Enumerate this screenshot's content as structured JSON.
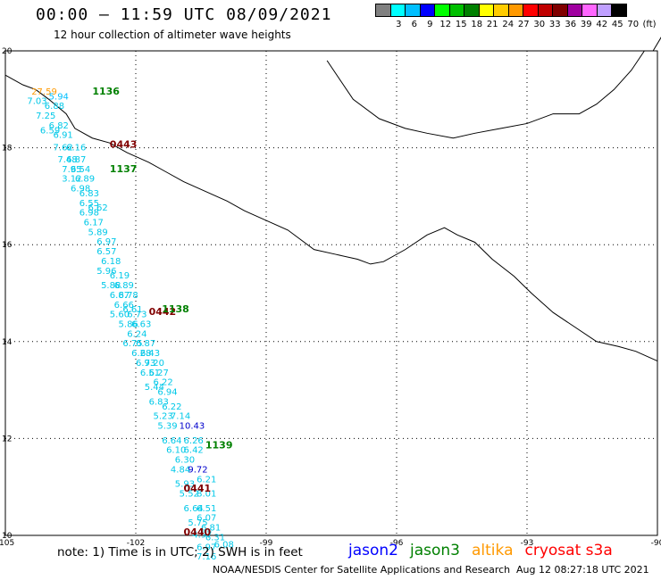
{
  "header": {
    "title": "00:00 – 11:59 UTC 08/09/2021",
    "subtitle": "12 hour collection of altimeter wave heights"
  },
  "legend": {
    "colors": [
      "#808080",
      "#00ffff",
      "#00bfff",
      "#0000ff",
      "#00ff00",
      "#00c000",
      "#008000",
      "#ffff00",
      "#ffcc00",
      "#ff9900",
      "#ff0000",
      "#c00000",
      "#800000",
      "#a000a0",
      "#ff66ff",
      "#c0a0ff",
      "#000000"
    ],
    "labels": [
      "",
      "3",
      "6",
      "9",
      "12",
      "15",
      "18",
      "21",
      "24",
      "27",
      "30",
      "33",
      "36",
      "39",
      "42",
      "45",
      "70"
    ],
    "unit": "(ft)"
  },
  "map": {
    "lon_range": [
      -105,
      -90
    ],
    "lat_range": [
      10,
      20
    ],
    "lon_ticks": [
      "-105",
      "-102",
      "-99",
      "-96",
      "-93",
      "-90"
    ],
    "lat_ticks": [
      "20",
      "18",
      "16",
      "14",
      "12",
      "10"
    ],
    "coastline": [
      [
        -105,
        19.5
      ],
      [
        -104.6,
        19.3
      ],
      [
        -104.3,
        19.2
      ],
      [
        -104.0,
        19.0
      ],
      [
        -103.6,
        18.7
      ],
      [
        -103.4,
        18.4
      ],
      [
        -103.0,
        18.2
      ],
      [
        -102.6,
        18.1
      ],
      [
        -102.2,
        17.9
      ],
      [
        -101.7,
        17.7
      ],
      [
        -101.3,
        17.5
      ],
      [
        -100.9,
        17.3
      ],
      [
        -100.4,
        17.1
      ],
      [
        -99.9,
        16.9
      ],
      [
        -99.5,
        16.7
      ],
      [
        -99.0,
        16.5
      ],
      [
        -98.5,
        16.3
      ],
      [
        -97.9,
        15.9
      ],
      [
        -97.4,
        15.8
      ],
      [
        -96.9,
        15.7
      ],
      [
        -96.6,
        15.6
      ],
      [
        -96.3,
        15.65
      ],
      [
        -95.8,
        15.9
      ],
      [
        -95.3,
        16.2
      ],
      [
        -94.9,
        16.35
      ],
      [
        -94.6,
        16.2
      ],
      [
        -94.2,
        16.05
      ],
      [
        -93.8,
        15.7
      ],
      [
        -93.3,
        15.35
      ],
      [
        -92.9,
        15.0
      ],
      [
        -92.4,
        14.6
      ],
      [
        -91.9,
        14.3
      ],
      [
        -91.4,
        14.0
      ],
      [
        -90.9,
        13.9
      ],
      [
        -90.5,
        13.8
      ],
      [
        -90.0,
        13.6
      ]
    ],
    "gulf_coast": [
      [
        -97.6,
        19.8
      ],
      [
        -97.0,
        19.0
      ],
      [
        -96.4,
        18.6
      ],
      [
        -95.8,
        18.4
      ],
      [
        -95.3,
        18.3
      ],
      [
        -94.7,
        18.2
      ],
      [
        -94.2,
        18.3
      ],
      [
        -93.6,
        18.4
      ],
      [
        -93.0,
        18.5
      ],
      [
        -92.4,
        18.7
      ],
      [
        -91.8,
        18.7
      ],
      [
        -91.4,
        18.9
      ],
      [
        -91.0,
        19.2
      ],
      [
        -90.6,
        19.6
      ],
      [
        -90.3,
        20.0
      ]
    ],
    "yucatan_coast": [
      [
        -90.1,
        20.0
      ],
      [
        -89.9,
        20.3
      ],
      [
        -89.6,
        20.5
      ]
    ]
  },
  "chart_data": {
    "type": "map",
    "tracks": [
      {
        "satellite": "jason3",
        "time": "1136",
        "color": "#008000",
        "label_at": [
          -103.0,
          19.1
        ],
        "points": [
          [
            -104.4,
            19.1,
            "27.59",
            "#ff9900"
          ],
          [
            -104.0,
            19.0,
            "5.94",
            "#00bfff"
          ]
        ]
      },
      {
        "satellite": "cryosat",
        "time": "0443",
        "color": "#800000",
        "label_at": [
          -102.6,
          18.0
        ]
      },
      {
        "satellite": "jason3",
        "time": "1137",
        "color": "#008000",
        "label_at": [
          -102.6,
          17.5
        ]
      },
      {
        "satellite": "cryosat",
        "time": "0442",
        "color": "#800000",
        "label_at": [
          -101.7,
          14.55
        ]
      },
      {
        "satellite": "jason3",
        "time": "1138",
        "color": "#008000",
        "label_at": [
          -101.4,
          14.6
        ]
      },
      {
        "satellite": "jason3",
        "time": "1139",
        "color": "#008000",
        "label_at": [
          -100.4,
          11.8
        ]
      },
      {
        "satellite": "cryosat",
        "time": "0441",
        "color": "#800000",
        "label_at": [
          -100.9,
          10.9
        ]
      },
      {
        "satellite": "cryosat",
        "time": "0440",
        "color": "#800000",
        "label_at": [
          -100.9,
          10.0
        ]
      }
    ],
    "wave_heights": [
      [
        "-104.5",
        "18.9",
        "7.03"
      ],
      [
        "-104.1",
        "18.8",
        "6.88"
      ],
      [
        "-104.3",
        "18.6",
        "7.25"
      ],
      [
        "-104.0",
        "18.4",
        "6.82"
      ],
      [
        "-104.2",
        "18.3",
        "6.59"
      ],
      [
        "-103.9",
        "18.2",
        "6.91"
      ],
      [
        "-103.9",
        "17.95",
        "7.62"
      ],
      [
        "-103.6",
        "17.95",
        "6.16"
      ],
      [
        "-103.8",
        "17.7",
        "7.48"
      ],
      [
        "-103.6",
        "17.7",
        "6.87"
      ],
      [
        "-103.7",
        "17.5",
        "7.95"
      ],
      [
        "-103.5",
        "17.5",
        "6.54"
      ],
      [
        "-103.7",
        "17.3",
        "3.12"
      ],
      [
        "-103.4",
        "17.3",
        "6.89"
      ],
      [
        "-103.5",
        "17.1",
        "6.98"
      ],
      [
        "-103.3",
        "17.0",
        "6.83"
      ],
      [
        "-103.3",
        "16.8",
        "6.55"
      ],
      [
        "-103.1",
        "16.7",
        "6.62"
      ],
      [
        "-103.3",
        "16.6",
        "6.98"
      ],
      [
        "-103.2",
        "16.4",
        "6.17"
      ],
      [
        "-103.1",
        "16.2",
        "5.89"
      ],
      [
        "-102.9",
        "16.0",
        "6.97"
      ],
      [
        "-102.9",
        "15.8",
        "6.57"
      ],
      [
        "-102.8",
        "15.6",
        "6.18"
      ],
      [
        "-102.9",
        "15.4",
        "5.96"
      ],
      [
        "-102.6",
        "15.3",
        "6.19"
      ],
      [
        "-102.8",
        "15.1",
        "5.88"
      ],
      [
        "-102.5",
        "15.1",
        "6.89"
      ],
      [
        "-102.6",
        "14.9",
        "6.87"
      ],
      [
        "-102.4",
        "14.9",
        "6.78"
      ],
      [
        "-102.5",
        "14.7",
        "6.66"
      ],
      [
        "-102.3",
        "14.6",
        "6.61"
      ],
      [
        "-102.6",
        "14.5",
        "5.60"
      ],
      [
        "-102.2",
        "14.5",
        "6.73"
      ],
      [
        "-102.4",
        "14.3",
        "5.86"
      ],
      [
        "-102.1",
        "14.3",
        "6.63"
      ],
      [
        "-102.2",
        "14.1",
        "6.24"
      ],
      [
        "-102.3",
        "13.9",
        "6.75"
      ],
      [
        "-102.0",
        "13.9",
        "6.87"
      ],
      [
        "-102.1",
        "13.7",
        "6.28"
      ],
      [
        "-101.9",
        "13.7",
        "6.43"
      ],
      [
        "-102.0",
        "13.5",
        "6.93"
      ],
      [
        "-101.8",
        "13.5",
        "7.20"
      ],
      [
        "-101.9",
        "13.3",
        "6.51"
      ],
      [
        "-101.7",
        "13.3",
        "6.27"
      ],
      [
        "-101.6",
        "13.1",
        "6.22"
      ],
      [
        "-101.8",
        "13.0",
        "5.44"
      ],
      [
        "-101.5",
        "12.9",
        "6.94"
      ],
      [
        "-101.7",
        "12.7",
        "6.83"
      ],
      [
        "-101.4",
        "12.6",
        "6.22"
      ],
      [
        "-101.6",
        "12.4",
        "5.23"
      ],
      [
        "-101.2",
        "12.4",
        "7.14"
      ],
      [
        "-101.5",
        "12.2",
        "5.39"
      ],
      [
        "-101.0",
        "12.2",
        "10.43"
      ],
      [
        "-101.4",
        "11.9",
        "6.64"
      ],
      [
        "-100.9",
        "11.9",
        "6.26"
      ],
      [
        "-101.3",
        "11.7",
        "6.10"
      ],
      [
        "-100.9",
        "11.7",
        "6.42"
      ],
      [
        "-101.1",
        "11.5",
        "6.30"
      ],
      [
        "-101.2",
        "11.3",
        "4.84"
      ],
      [
        "-100.8",
        "11.3",
        "9.72"
      ],
      [
        "-101.1",
        "11.0",
        "5.93"
      ],
      [
        "-100.6",
        "11.1",
        "6.21"
      ],
      [
        "-101.0",
        "10.8",
        "5.52"
      ],
      [
        "-100.6",
        "10.8",
        "8.01"
      ],
      [
        "-100.9",
        "10.5",
        "6.64"
      ],
      [
        "-100.6",
        "10.5",
        "6.51"
      ],
      [
        "-100.6",
        "10.3",
        "6.07"
      ],
      [
        "-100.8",
        "10.2",
        "5.75"
      ],
      [
        "-100.5",
        "10.1",
        "6.81"
      ],
      [
        "-100.7",
        "9.95",
        "4.97"
      ],
      [
        "-100.4",
        "9.9",
        "6.31"
      ],
      [
        "-100.6",
        "9.7",
        "6.97"
      ],
      [
        "-100.2",
        "9.75",
        "6.08"
      ],
      [
        "-100.6",
        "9.5",
        "7.16"
      ]
    ]
  },
  "footer": {
    "note": "note:  1) Time is in UTC;  2) SWH is in feet",
    "satellites": [
      {
        "name": "jason2",
        "color": "#0000ff"
      },
      {
        "name": "jason3",
        "color": "#008000"
      },
      {
        "name": "altika",
        "color": "#ff9900"
      },
      {
        "name": "cryosat s3a",
        "color": "#ff0000"
      }
    ],
    "credit": "NOAA/NESDIS Center for Satellite Applications and Research",
    "timestamp": "Aug 12 08:27:18 UTC 2021"
  }
}
